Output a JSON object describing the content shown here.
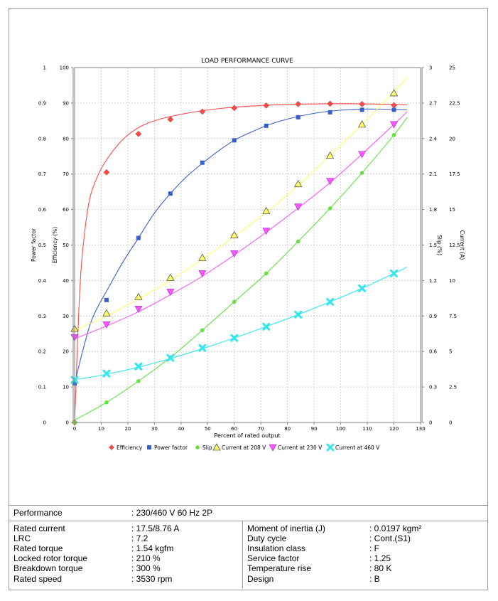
{
  "chart_data": {
    "type": "line",
    "title": "LOAD PERFORMANCE CURVE",
    "xlabel": "Percent of rated output",
    "xlim": [
      0,
      130
    ],
    "x_ticks": [
      "0",
      "10",
      "20",
      "30",
      "40",
      "50",
      "60",
      "70",
      "80",
      "90",
      "100",
      "110",
      "120",
      "130"
    ],
    "axes": [
      {
        "id": "pf",
        "label": "Power factor",
        "side": "left",
        "range": [
          0,
          1
        ],
        "ticks": [
          "0",
          "0.1",
          "0.2",
          "0.3",
          "0.4",
          "0.5",
          "0.6",
          "0.7",
          "0.8",
          "0.9",
          "1"
        ]
      },
      {
        "id": "eff",
        "label": "Efficiency (%)",
        "side": "left",
        "range": [
          0,
          100
        ],
        "ticks": [
          "0",
          "10",
          "20",
          "30",
          "40",
          "50",
          "60",
          "70",
          "80",
          "90",
          "100"
        ]
      },
      {
        "id": "slip",
        "label": "Slip (%)",
        "side": "right",
        "range": [
          0,
          3
        ],
        "ticks": [
          "0",
          "0.3",
          "0.6",
          "0.9",
          "1.2",
          "1.5",
          "1.8",
          "2.1",
          "2.4",
          "2.7",
          "3"
        ]
      },
      {
        "id": "cur",
        "label": "Current (A)",
        "side": "right",
        "range": [
          0,
          25
        ],
        "ticks": [
          "0",
          "2.5",
          "5",
          "7.5",
          "10",
          "12.5",
          "15",
          "17.5",
          "20",
          "22.5",
          "25"
        ]
      }
    ],
    "grid": true,
    "legend_position": "bottom",
    "series": [
      {
        "name": "Efficiency",
        "axis": "eff",
        "color": "#ff4a4a",
        "marker": "diamond",
        "x": [
          0,
          12,
          24,
          36,
          48,
          60,
          72,
          84,
          96,
          108,
          120
        ],
        "values": [
          0,
          70.5,
          81.3,
          85.4,
          87.6,
          88.6,
          89.3,
          89.7,
          89.8,
          89.7,
          89.4
        ],
        "curve": [
          [
            0,
            0
          ],
          [
            2,
            38
          ],
          [
            4,
            55
          ],
          [
            6,
            64
          ],
          [
            9,
            70
          ],
          [
            12,
            74
          ],
          [
            16,
            78
          ],
          [
            20,
            81
          ],
          [
            25,
            83.5
          ],
          [
            30,
            85
          ],
          [
            36,
            86.2
          ],
          [
            45,
            87.5
          ],
          [
            55,
            88.5
          ],
          [
            65,
            89.1
          ],
          [
            75,
            89.5
          ],
          [
            85,
            89.7
          ],
          [
            95,
            89.8
          ],
          [
            105,
            89.8
          ],
          [
            115,
            89.7
          ],
          [
            125,
            89.5
          ]
        ]
      },
      {
        "name": "Power factor",
        "axis": "pf",
        "color": "#3a5fcd",
        "marker": "square",
        "x": [
          0,
          12,
          24,
          36,
          48,
          60,
          72,
          84,
          96,
          108,
          120
        ],
        "values": [
          0.11,
          0.345,
          0.52,
          0.645,
          0.732,
          0.795,
          0.836,
          0.86,
          0.874,
          0.881,
          0.881
        ],
        "curve": [
          [
            0,
            0.11
          ],
          [
            3,
            0.2
          ],
          [
            6,
            0.28
          ],
          [
            9,
            0.33
          ],
          [
            12,
            0.37
          ],
          [
            18,
            0.45
          ],
          [
            24,
            0.52
          ],
          [
            30,
            0.59
          ],
          [
            36,
            0.645
          ],
          [
            42,
            0.692
          ],
          [
            48,
            0.73
          ],
          [
            54,
            0.765
          ],
          [
            60,
            0.795
          ],
          [
            66,
            0.817
          ],
          [
            72,
            0.836
          ],
          [
            78,
            0.851
          ],
          [
            84,
            0.862
          ],
          [
            90,
            0.871
          ],
          [
            96,
            0.877
          ],
          [
            102,
            0.881
          ],
          [
            108,
            0.883
          ],
          [
            114,
            0.883
          ],
          [
            120,
            0.882
          ],
          [
            125,
            0.881
          ]
        ]
      },
      {
        "name": "Slip",
        "axis": "slip",
        "color": "#66e040",
        "marker": "circle",
        "x": [
          0,
          12,
          24,
          36,
          48,
          60,
          72,
          84,
          96,
          108,
          120
        ],
        "values": [
          0,
          0.17,
          0.35,
          0.55,
          0.78,
          1.02,
          1.26,
          1.53,
          1.81,
          2.11,
          2.43
        ],
        "curve": [
          [
            0,
            0.02
          ],
          [
            12,
            0.17
          ],
          [
            24,
            0.35
          ],
          [
            36,
            0.55
          ],
          [
            48,
            0.78
          ],
          [
            60,
            1.02
          ],
          [
            72,
            1.26
          ],
          [
            84,
            1.53
          ],
          [
            96,
            1.81
          ],
          [
            108,
            2.11
          ],
          [
            120,
            2.43
          ],
          [
            125,
            2.58
          ]
        ]
      },
      {
        "name": "Current at 208 V",
        "axis": "cur",
        "color": "#ffff66",
        "marker": "triangle",
        "x": [
          0,
          12,
          24,
          36,
          48,
          60,
          72,
          84,
          96,
          108,
          120
        ],
        "values": [
          6.6,
          7.7,
          8.85,
          10.2,
          11.6,
          13.2,
          14.9,
          16.8,
          18.8,
          21.0,
          23.2
        ],
        "curve": [
          [
            0,
            6.5
          ],
          [
            12,
            7.5
          ],
          [
            24,
            8.7
          ],
          [
            36,
            10.0
          ],
          [
            48,
            11.5
          ],
          [
            60,
            13.1
          ],
          [
            72,
            14.8
          ],
          [
            84,
            16.7
          ],
          [
            96,
            18.8
          ],
          [
            108,
            21.0
          ],
          [
            120,
            23.3
          ],
          [
            125,
            24.3
          ]
        ]
      },
      {
        "name": "Current at 230 V",
        "axis": "cur",
        "color": "#ff55ff",
        "marker": "triangle-down",
        "x": [
          0,
          12,
          24,
          36,
          48,
          60,
          72,
          84,
          96,
          108,
          120
        ],
        "values": [
          6.0,
          6.9,
          8.0,
          9.2,
          10.5,
          11.9,
          13.5,
          15.2,
          17.0,
          18.9,
          21.0
        ],
        "curve": [
          [
            0,
            5.9
          ],
          [
            12,
            6.8
          ],
          [
            24,
            7.8
          ],
          [
            36,
            9.0
          ],
          [
            48,
            10.3
          ],
          [
            60,
            11.8
          ],
          [
            72,
            13.4
          ],
          [
            84,
            15.1
          ],
          [
            96,
            16.9
          ],
          [
            108,
            18.9
          ],
          [
            120,
            21.0
          ],
          [
            125,
            21.9
          ]
        ]
      },
      {
        "name": "Current at 460 V",
        "axis": "cur",
        "color": "#33e6f0",
        "marker": "x",
        "x": [
          0,
          12,
          24,
          36,
          48,
          60,
          72,
          84,
          96,
          108,
          120
        ],
        "values": [
          3.0,
          3.45,
          3.95,
          4.55,
          5.25,
          5.95,
          6.75,
          7.6,
          8.5,
          9.45,
          10.5
        ],
        "curve": [
          [
            0,
            3.0
          ],
          [
            12,
            3.4
          ],
          [
            24,
            3.9
          ],
          [
            36,
            4.5
          ],
          [
            48,
            5.2
          ],
          [
            60,
            5.95
          ],
          [
            72,
            6.75
          ],
          [
            84,
            7.6
          ],
          [
            96,
            8.5
          ],
          [
            108,
            9.45
          ],
          [
            120,
            10.5
          ],
          [
            125,
            10.95
          ]
        ]
      }
    ]
  },
  "specs": {
    "performance_label": "Performance",
    "performance_value": ": 230/460 V 60 Hz 2P",
    "left": [
      {
        "label": "Rated current",
        "value": ": 17.5/8.76 A"
      },
      {
        "label": "LRC",
        "value": ": 7.2"
      },
      {
        "label": "Rated torque",
        "value": ": 1.54 kgfm"
      },
      {
        "label": "Locked rotor torque",
        "value": ": 210 %"
      },
      {
        "label": "Breakdown torque",
        "value": ": 300 %"
      },
      {
        "label": "Rated speed",
        "value": ": 3530 rpm"
      }
    ],
    "right": [
      {
        "label": "Moment of inertia (J)",
        "value": ": 0.0197 kgm²"
      },
      {
        "label": "Duty cycle",
        "value": ": Cont.(S1)"
      },
      {
        "label": "Insulation class",
        "value": ": F"
      },
      {
        "label": "Service factor",
        "value": ": 1.25"
      },
      {
        "label": "Temperature rise",
        "value": ": 80 K"
      },
      {
        "label": "Design",
        "value": ": B"
      }
    ]
  }
}
